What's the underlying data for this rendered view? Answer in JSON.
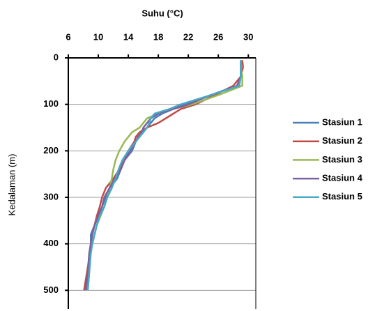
{
  "chart_data": {
    "type": "line",
    "title": "Suhu (°C)",
    "y_label": "Kedalaman (m)",
    "depths": [
      5,
      20,
      40,
      60,
      80,
      100,
      110,
      120,
      130,
      140,
      150,
      160,
      170,
      180,
      200,
      220,
      240,
      260,
      280,
      300,
      320,
      340,
      360,
      380,
      400,
      420,
      440,
      460,
      480,
      500
    ],
    "series": [
      {
        "name": "Stasiun 1",
        "color": "#4a7ebb",
        "values": [
          29,
          29,
          29,
          28.5,
          25,
          21.5,
          20,
          18.5,
          17.5,
          17,
          16.5,
          16,
          15.5,
          15,
          14.5,
          13.5,
          13,
          12.5,
          11.5,
          11,
          10.5,
          10,
          9.5,
          9,
          9,
          8.8,
          8.7,
          8.6,
          8.5,
          8.4
        ]
      },
      {
        "name": "Stasiun 2",
        "color": "#be4b48",
        "values": [
          29.2,
          29.3,
          29,
          28,
          25.5,
          23,
          21,
          20,
          19,
          18,
          16.5,
          15.5,
          15,
          14.8,
          14,
          13.5,
          12.8,
          12,
          11,
          10.5,
          10.2,
          9.8,
          9.5,
          9.2,
          9,
          8.8,
          8.7,
          8.5,
          8.3,
          8.1
        ]
      },
      {
        "name": "Stasiun 3",
        "color": "#98b954",
        "values": [
          29,
          29,
          29.2,
          29.2,
          26,
          22.5,
          20,
          18,
          16.5,
          16,
          15.5,
          14.5,
          14,
          13.5,
          12.8,
          12.3,
          12,
          11.8,
          11.5,
          11.2,
          10.8,
          10.3,
          9.8,
          9.5,
          9.2,
          9,
          8.9,
          8.8,
          8.7,
          8.6
        ]
      },
      {
        "name": "Stasiun 4",
        "color": "#7d60a0",
        "values": [
          29,
          29,
          29,
          28.5,
          25,
          22,
          20,
          18,
          17,
          16.5,
          16,
          15.8,
          15.3,
          15,
          14.3,
          13.5,
          13,
          12.2,
          11.5,
          10.8,
          10.5,
          10,
          9.5,
          9.2,
          9,
          8.8,
          8.7,
          8.6,
          8.5,
          8.3
        ]
      },
      {
        "name": "Stasiun 5",
        "color": "#46aac5",
        "values": [
          29,
          29,
          29,
          28.8,
          25,
          21,
          19.5,
          17.5,
          17,
          16.8,
          16.5,
          16,
          15.5,
          15,
          14,
          13.2,
          12.7,
          12.3,
          11.8,
          11.2,
          10.8,
          10.2,
          9.8,
          9.5,
          9.2,
          9,
          8.9,
          8.8,
          8.7,
          8.6
        ]
      }
    ],
    "xlim": [
      6,
      31
    ],
    "xticks": [
      6,
      10,
      14,
      18,
      22,
      26,
      30
    ],
    "ylim": [
      0,
      540
    ],
    "yticks": [
      0,
      100,
      200,
      300,
      400,
      500
    ],
    "y_inverted": true,
    "grid": true
  }
}
